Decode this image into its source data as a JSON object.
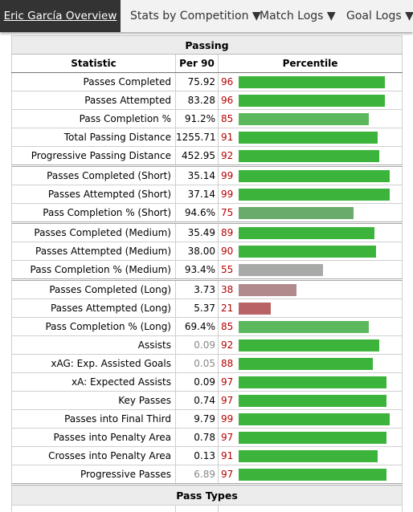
{
  "nav": {
    "items": [
      {
        "label": "Eric García Overview",
        "active": true
      },
      {
        "label": "Stats by Competition ▼"
      },
      {
        "label": "Match Logs ▼"
      },
      {
        "label": "Goal Logs ▼"
      }
    ]
  },
  "table": {
    "section_title": "Passing",
    "columns": [
      "Statistic",
      "Per 90",
      "Percentile"
    ],
    "rows": [
      {
        "stat": "Passes Completed",
        "per90": "75.92",
        "pct": 96,
        "group_start": false
      },
      {
        "stat": "Passes Attempted",
        "per90": "83.28",
        "pct": 96,
        "group_start": false
      },
      {
        "stat": "Pass Completion %",
        "per90": "91.2%",
        "pct": 85,
        "group_start": false
      },
      {
        "stat": "Total Passing Distance",
        "per90": "1255.71",
        "pct": 91,
        "group_start": false
      },
      {
        "stat": "Progressive Passing Distance",
        "per90": "452.95",
        "pct": 92,
        "group_start": false
      },
      {
        "stat": "Passes Completed (Short)",
        "per90": "35.14",
        "pct": 99,
        "group_start": true
      },
      {
        "stat": "Passes Attempted (Short)",
        "per90": "37.14",
        "pct": 99,
        "group_start": false
      },
      {
        "stat": "Pass Completion % (Short)",
        "per90": "94.6%",
        "pct": 75,
        "group_start": false
      },
      {
        "stat": "Passes Completed (Medium)",
        "per90": "35.49",
        "pct": 89,
        "group_start": true
      },
      {
        "stat": "Passes Attempted (Medium)",
        "per90": "38.00",
        "pct": 90,
        "group_start": false
      },
      {
        "stat": "Pass Completion % (Medium)",
        "per90": "93.4%",
        "pct": 55,
        "group_start": false
      },
      {
        "stat": "Passes Completed (Long)",
        "per90": "3.73",
        "pct": 38,
        "group_start": true
      },
      {
        "stat": "Passes Attempted (Long)",
        "per90": "5.37",
        "pct": 21,
        "group_start": false
      },
      {
        "stat": "Pass Completion % (Long)",
        "per90": "69.4%",
        "pct": 85,
        "group_start": false
      },
      {
        "stat": "Assists",
        "per90": "0.09",
        "pct": 92,
        "group_start": false,
        "dim": true
      },
      {
        "stat": "xAG: Exp. Assisted Goals",
        "per90": "0.05",
        "pct": 88,
        "group_start": false,
        "dim": true
      },
      {
        "stat": "xA: Expected Assists",
        "per90": "0.09",
        "pct": 97,
        "group_start": false
      },
      {
        "stat": "Key Passes",
        "per90": "0.74",
        "pct": 97,
        "group_start": false
      },
      {
        "stat": "Passes into Final Third",
        "per90": "9.79",
        "pct": 99,
        "group_start": false
      },
      {
        "stat": "Passes into Penalty Area",
        "per90": "0.78",
        "pct": 97,
        "group_start": false
      },
      {
        "stat": "Crosses into Penalty Area",
        "per90": "0.13",
        "pct": 91,
        "group_start": false
      },
      {
        "stat": "Progressive Passes",
        "per90": "6.89",
        "pct": 97,
        "group_start": false,
        "dim": true
      }
    ],
    "footer_title": "Pass Types"
  },
  "colors": {
    "nav_active_bg": "#333333",
    "bar_high": "#3cb43c",
    "bar_mid_high": "#5cb85c",
    "bar_mid": "#6aaa6a",
    "bar_neutral": "#a8aaa8",
    "bar_low": "#b08a8c",
    "bar_very_low": "#b86466",
    "percentile_text": "#b50000"
  }
}
